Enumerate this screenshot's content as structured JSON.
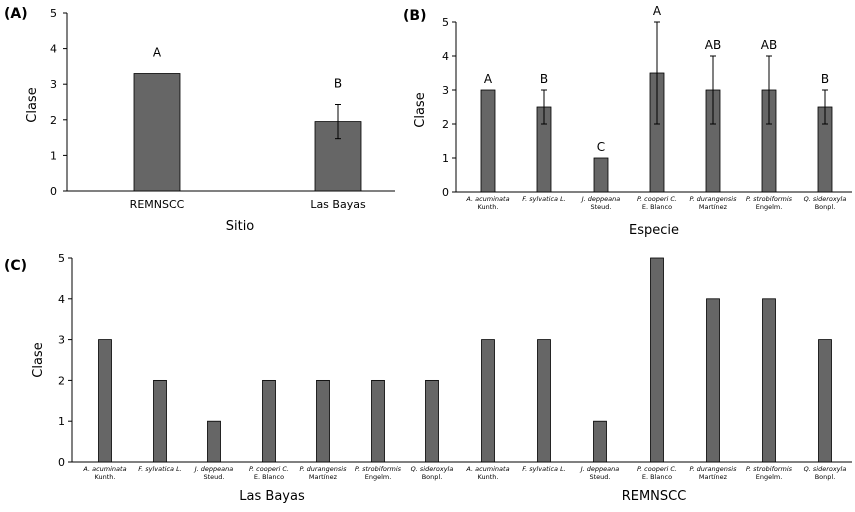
{
  "chart_data": [
    {
      "panel": "(A)",
      "type": "bar",
      "xlabel": "Sitio",
      "ylabel": "Clase",
      "ylim": [
        0,
        5
      ],
      "yticks": [
        "0",
        "1",
        "2",
        "3",
        "4",
        "5"
      ],
      "categories": [
        "REMNSCC",
        "Las Bayas"
      ],
      "values": [
        3.3,
        1.95
      ],
      "error": [
        0,
        0.48
      ],
      "letters": [
        "A",
        "B"
      ]
    },
    {
      "panel": "(B)",
      "type": "bar",
      "xlabel": "Especie",
      "ylabel": "Clase",
      "ylim": [
        0,
        5
      ],
      "yticks": [
        "0",
        "1",
        "2",
        "3",
        "4",
        "5"
      ],
      "categories": [
        [
          "A. acuminata",
          "Kunth."
        ],
        [
          "F. sylvatica L."
        ],
        [
          "J. deppeana",
          "Steud."
        ],
        [
          "P. cooperi C.",
          "E. Blanco"
        ],
        [
          "P. durangensis",
          "Martínez"
        ],
        [
          "P. strobiformis",
          "Engelm."
        ],
        [
          "Q. sideroxyla",
          "Bonpl."
        ]
      ],
      "values": [
        3,
        2.5,
        1,
        3.5,
        3,
        3,
        2.5
      ],
      "error": [
        0,
        0.5,
        0,
        1.5,
        1,
        1,
        0.5
      ],
      "letters": [
        "A",
        "B",
        "C",
        "A",
        "AB",
        "AB",
        "B"
      ]
    },
    {
      "panel": "(C)",
      "type": "bar",
      "ylabel": "Clase",
      "ylim": [
        0,
        5
      ],
      "yticks": [
        "0",
        "1",
        "2",
        "3",
        "4",
        "5"
      ],
      "categories": [
        [
          "A. acuminata",
          "Kunth."
        ],
        [
          "F. sylvatica L."
        ],
        [
          "J. deppeana",
          "Steud."
        ],
        [
          "P. cooperi C.",
          "E. Blanco"
        ],
        [
          "P. durangensis",
          "Martínez"
        ],
        [
          "P. strobiformis",
          "Engelm."
        ],
        [
          "Q. sideroxyla",
          "Bonpl."
        ]
      ],
      "groups": [
        {
          "name": "Las Bayas",
          "values": [
            3,
            2,
            1,
            2,
            2,
            2,
            2
          ]
        },
        {
          "name": "REMNSCC",
          "values": [
            3,
            3,
            1,
            5,
            4,
            4,
            3
          ]
        }
      ]
    }
  ],
  "colors": {
    "bar": "#666666",
    "axis": "#000000"
  }
}
